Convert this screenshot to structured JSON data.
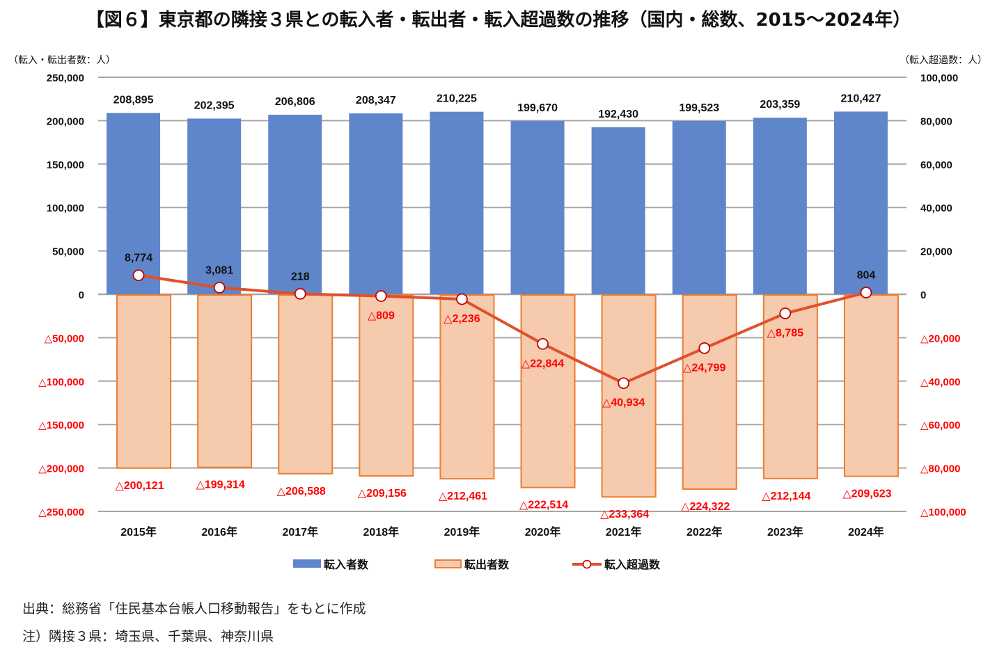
{
  "title": "【図６】東京都の隣接３県との転入者・転出者・転入超過数の推移（国内・総数、2015～2024年）",
  "source_note": "出典：総務省「住民基本台帳人口移動報告」をもとに作成",
  "footnote": "注）隣接３県：埼玉県、千葉県、神奈川県",
  "colors": {
    "inflow": "#5F86CB",
    "outflow_fill": "#F6CAAC",
    "outflow_border": "#ED7D31",
    "net_line": "#E0502A",
    "marker_border": "#C00000",
    "negative_label": "#FF0000",
    "grid": "#A6A6A6",
    "text": "#111111"
  },
  "chart_data": {
    "type": "bar",
    "title": "【図６】東京都の隣接３県との転入者・転出者・転入超過数の推移（国内・総数、2015～2024年）",
    "xlabel": "",
    "ylabel_left": "（転入・転出者数：人）",
    "ylabel_right": "（転入超過数：人）",
    "categories": [
      "2015年",
      "2016年",
      "2017年",
      "2018年",
      "2019年",
      "2020年",
      "2021年",
      "2022年",
      "2023年",
      "2024年"
    ],
    "ylim_left": [
      -250000,
      250000
    ],
    "ylim_right": [
      -100000,
      100000
    ],
    "yticks_left": [
      250000,
      200000,
      150000,
      100000,
      50000,
      0,
      -50000,
      -100000,
      -150000,
      -200000,
      -250000
    ],
    "yticks_left_labels": [
      "250,000",
      "200,000",
      "150,000",
      "100,000",
      "50,000",
      "0",
      "△50,000",
      "△100,000",
      "△150,000",
      "△200,000",
      "△250,000"
    ],
    "yticks_right": [
      100000,
      80000,
      60000,
      40000,
      20000,
      0,
      -20000,
      -40000,
      -60000,
      -80000,
      -100000
    ],
    "yticks_right_labels": [
      "100,000",
      "80,000",
      "60,000",
      "40,000",
      "20,000",
      "0",
      "△20,000",
      "△40,000",
      "△60,000",
      "△80,000",
      "△100,000"
    ],
    "grid": true,
    "legend_position": "bottom",
    "series": [
      {
        "name": "転入者数",
        "type": "bar",
        "axis": "left",
        "values": [
          208895,
          202395,
          206806,
          208347,
          210225,
          199670,
          192430,
          199523,
          203359,
          210427
        ],
        "labels": [
          "208,895",
          "202,395",
          "206,806",
          "208,347",
          "210,225",
          "199,670",
          "192,430",
          "199,523",
          "203,359",
          "210,427"
        ]
      },
      {
        "name": "転出者数",
        "type": "bar",
        "axis": "left",
        "values": [
          -200121,
          -199314,
          -206588,
          -209156,
          -212461,
          -222514,
          -233364,
          -224322,
          -212144,
          -209623
        ],
        "labels": [
          "△200,121",
          "△199,314",
          "△206,588",
          "△209,156",
          "△212,461",
          "△222,514",
          "△233,364",
          "△224,322",
          "△212,144",
          "△209,623"
        ]
      },
      {
        "name": "転入超過数",
        "type": "line",
        "axis": "right",
        "values": [
          8774,
          3081,
          218,
          -809,
          -2236,
          -22844,
          -40934,
          -24799,
          -8785,
          804
        ],
        "labels": [
          "8,774",
          "3,081",
          "218",
          "△809",
          "△2,236",
          "△22,844",
          "△40,934",
          "△24,799",
          "△8,785",
          "804"
        ]
      }
    ]
  }
}
